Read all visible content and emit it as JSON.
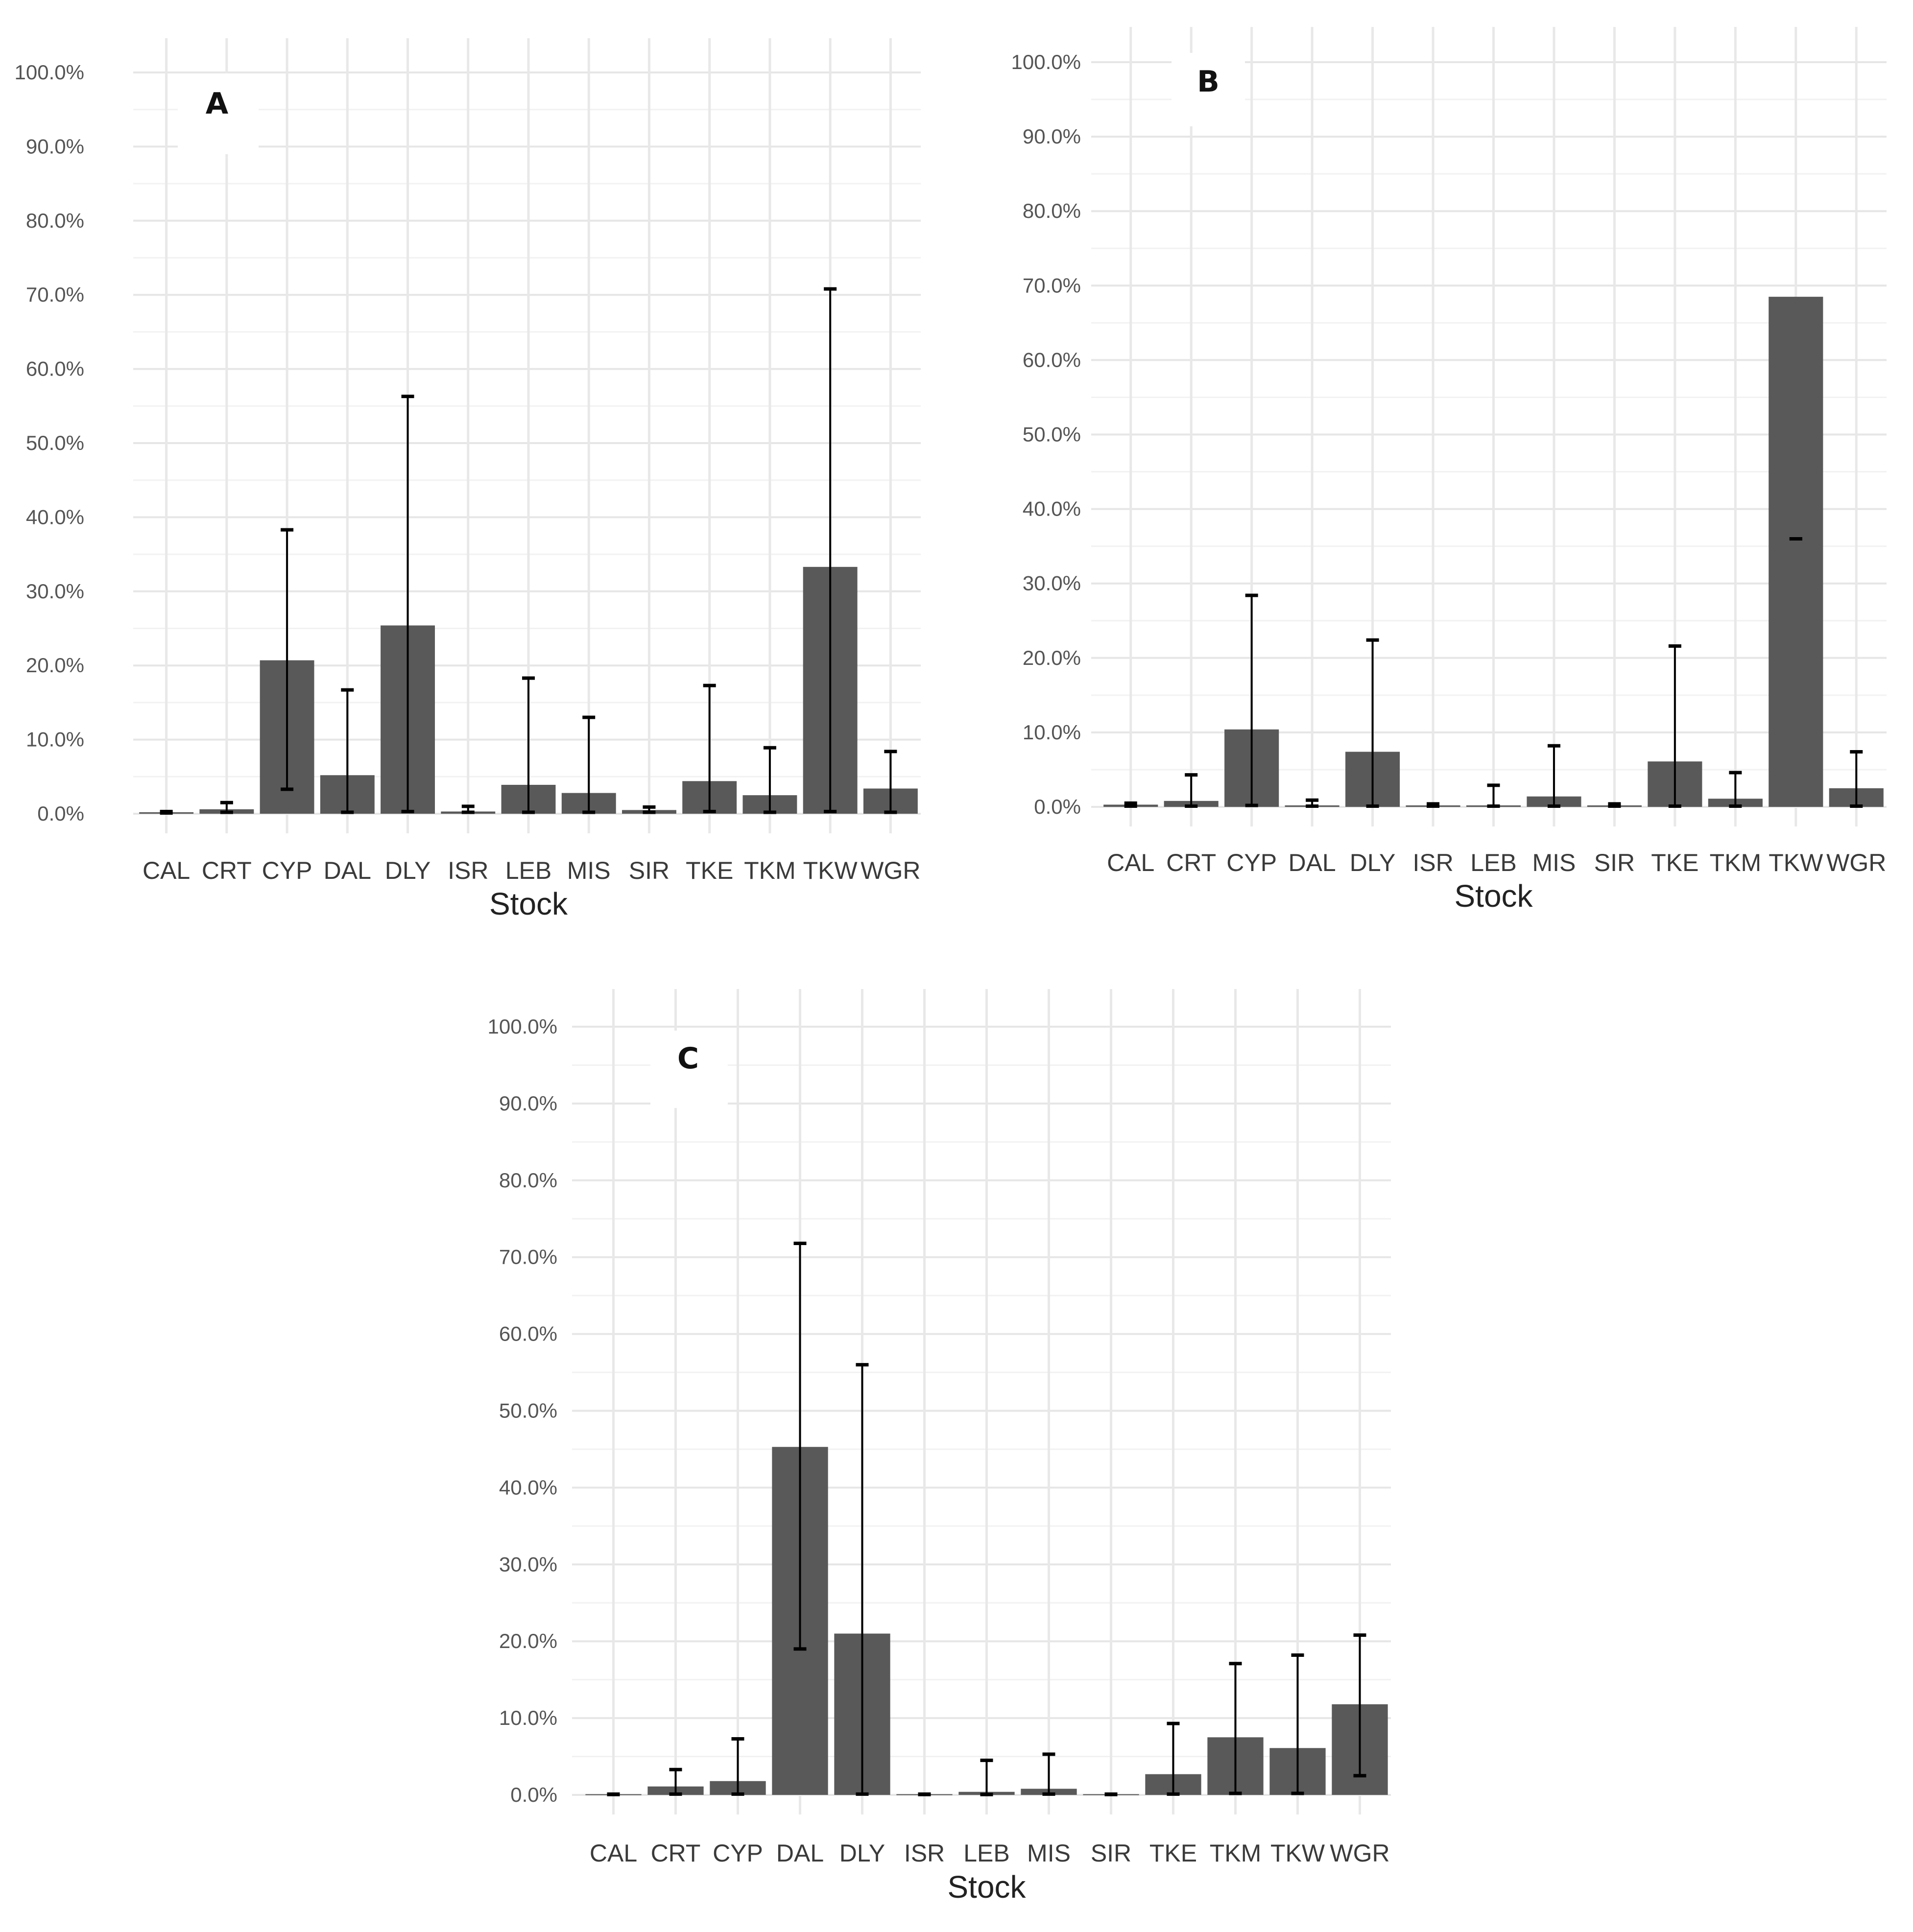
{
  "chart_data": [
    {
      "type": "bar",
      "panel_label": "A",
      "xlabel": "Stock",
      "ylabel": "",
      "ylim": [
        0,
        100
      ],
      "y_tick_labels": [
        "0.0%",
        "10.0%",
        "20.0%",
        "30.0%",
        "40.0%",
        "50.0%",
        "60.0%",
        "70.0%",
        "80.0%",
        "90.0%",
        "100.0%"
      ],
      "categories": [
        "CAL",
        "CRT",
        "CYP",
        "DAL",
        "DLY",
        "ISR",
        "LEB",
        "MIS",
        "SIR",
        "TKE",
        "TKM",
        "TKW",
        "WGR"
      ],
      "values": [
        0.2,
        0.6,
        20.7,
        5.2,
        25.4,
        0.3,
        3.9,
        2.8,
        0.5,
        4.4,
        2.5,
        33.3,
        3.4
      ],
      "error_low": [
        0.1,
        0.2,
        3.3,
        0.2,
        0.3,
        0.2,
        0.2,
        0.2,
        0.2,
        0.3,
        0.2,
        0.3,
        0.2
      ],
      "error_high": [
        0.3,
        1.5,
        38.3,
        16.7,
        56.3,
        1.0,
        18.3,
        13.0,
        0.9,
        17.3,
        8.9,
        70.8,
        8.4
      ],
      "grid": true
    },
    {
      "type": "bar",
      "panel_label": "B",
      "xlabel": "Stock",
      "ylabel": "",
      "ylim": [
        0,
        100
      ],
      "y_tick_labels": [
        "0.0%",
        "10.0%",
        "20.0%",
        "30.0%",
        "40.0%",
        "50.0%",
        "60.0%",
        "70.0%",
        "80.0%",
        "90.0%",
        "100.0%"
      ],
      "categories": [
        "CAL",
        "CRT",
        "CYP",
        "DAL",
        "DLY",
        "ISR",
        "LEB",
        "MIS",
        "SIR",
        "TKE",
        "TKM",
        "TKW",
        "WGR"
      ],
      "values": [
        0.3,
        0.8,
        10.4,
        0.2,
        7.4,
        0.2,
        0.2,
        1.4,
        0.2,
        6.1,
        1.1,
        68.5,
        2.5
      ],
      "error_low": [
        0.1,
        0.1,
        0.2,
        0.1,
        0.1,
        0.1,
        0.1,
        0.1,
        0.1,
        0.1,
        0.1,
        36.0,
        0.1
      ],
      "error_high": [
        0.5,
        4.3,
        28.4,
        0.9,
        22.4,
        0.4,
        2.9,
        8.2,
        0.4,
        21.6,
        4.6,
        36.0,
        7.4
      ],
      "grid": true
    },
    {
      "type": "bar",
      "panel_label": "C",
      "xlabel": "Stock",
      "ylabel": "",
      "ylim": [
        0,
        100
      ],
      "y_tick_labels": [
        "0.0%",
        "10.0%",
        "20.0%",
        "30.0%",
        "40.0%",
        "50.0%",
        "60.0%",
        "70.0%",
        "80.0%",
        "90.0%",
        "100.0%"
      ],
      "categories": [
        "CAL",
        "CRT",
        "CYP",
        "DAL",
        "DLY",
        "ISR",
        "LEB",
        "MIS",
        "SIR",
        "TKE",
        "TKM",
        "TKW",
        "WGR"
      ],
      "values": [
        0.1,
        1.1,
        1.8,
        45.3,
        21.0,
        0.1,
        0.4,
        0.8,
        0.1,
        2.7,
        7.5,
        6.1,
        11.8
      ],
      "error_low": [
        0.05,
        0.1,
        0.1,
        19.0,
        0.1,
        0.05,
        0.05,
        0.1,
        0.05,
        0.1,
        0.2,
        0.2,
        2.5
      ],
      "error_high": [
        0.1,
        3.3,
        7.3,
        71.8,
        56.0,
        0.1,
        4.5,
        5.3,
        0.1,
        9.3,
        17.1,
        18.2,
        20.8
      ],
      "grid": true
    }
  ]
}
